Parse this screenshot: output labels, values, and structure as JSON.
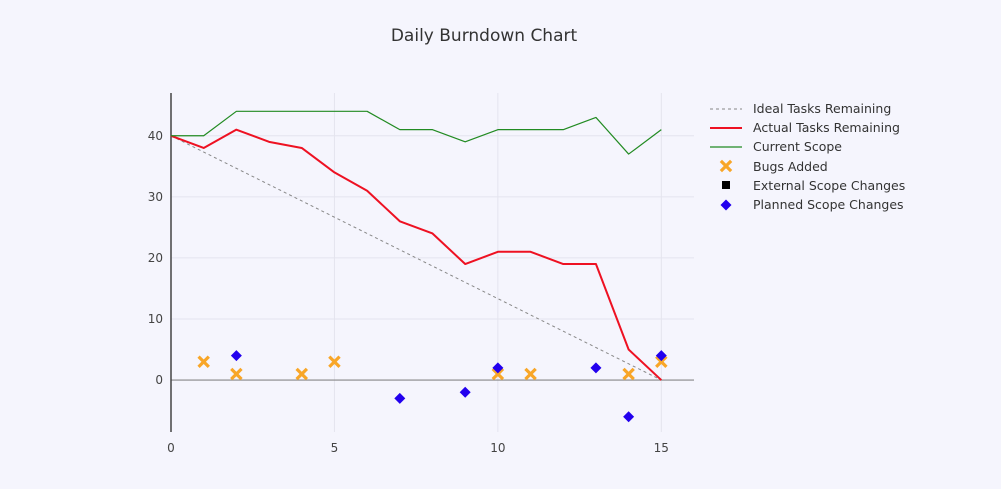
{
  "chart_data": {
    "type": "line",
    "title": "Daily Burndown Chart",
    "xlabel": "",
    "ylabel": "",
    "xlim": [
      0,
      16
    ],
    "ylim": [
      -8.5,
      47
    ],
    "x_ticks": [
      0,
      5,
      10,
      15
    ],
    "y_ticks": [
      0,
      10,
      20,
      30,
      40
    ],
    "grid": true,
    "legend_position": "right",
    "series": [
      {
        "name": "Ideal Tasks Remaining",
        "mode": "lines",
        "dash": "dot",
        "color": "#888888",
        "x": [
          0,
          15
        ],
        "y": [
          40,
          0
        ]
      },
      {
        "name": "Actual Tasks Remaining",
        "mode": "lines",
        "color": "#ee1122",
        "x": [
          0,
          1,
          2,
          3,
          4,
          5,
          6,
          7,
          8,
          9,
          10,
          11,
          12,
          13,
          14,
          15
        ],
        "y": [
          40,
          38,
          41,
          39,
          38,
          34,
          31,
          26,
          24,
          19,
          21,
          21,
          19,
          19,
          5,
          0
        ]
      },
      {
        "name": "Current Scope",
        "mode": "lines",
        "color": "#228b22",
        "x": [
          0,
          1,
          2,
          3,
          4,
          5,
          6,
          7,
          8,
          9,
          10,
          11,
          12,
          13,
          14,
          15
        ],
        "y": [
          40,
          40,
          44,
          44,
          44,
          44,
          44,
          41,
          41,
          39,
          41,
          41,
          41,
          43,
          37,
          41
        ]
      },
      {
        "name": "Bugs Added",
        "mode": "markers",
        "marker": "x",
        "color": "#f8a628",
        "x": [
          1,
          2,
          4,
          5,
          10,
          11,
          14,
          15
        ],
        "y": [
          3,
          1,
          1,
          3,
          1,
          1,
          1,
          3
        ]
      },
      {
        "name": "External Scope Changes",
        "mode": "markers",
        "marker": "square",
        "color": "#000000",
        "x": [],
        "y": []
      },
      {
        "name": "Planned Scope Changes",
        "mode": "markers",
        "marker": "diamond",
        "color": "#2200ee",
        "x": [
          2,
          7,
          9,
          10,
          13,
          14,
          15
        ],
        "y": [
          4,
          -3,
          -2,
          2,
          2,
          -6,
          4
        ]
      }
    ]
  },
  "legend": [
    {
      "label": "Ideal Tasks Remaining"
    },
    {
      "label": "Actual Tasks Remaining"
    },
    {
      "label": "Current Scope"
    },
    {
      "label": "Bugs Added"
    },
    {
      "label": "External Scope Changes"
    },
    {
      "label": "Planned Scope Changes"
    }
  ]
}
